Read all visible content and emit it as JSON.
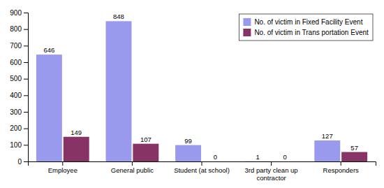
{
  "chart_data": {
    "type": "bar",
    "categories": [
      "Employee",
      "General public",
      "Student (at school)",
      "3rd party clean up\ncontractor",
      "Responders"
    ],
    "series": [
      {
        "name": "No. of victim in Fixed Facility Event",
        "color": "#9999ee",
        "values": [
          646,
          848,
          99,
          1,
          127
        ]
      },
      {
        "name": "No. of victim in Trans portation Event",
        "color": "#883366",
        "values": [
          149,
          107,
          0,
          0,
          57
        ]
      }
    ],
    "ylim": [
      0,
      900
    ],
    "yticks": [
      0,
      100,
      200,
      300,
      400,
      500,
      600,
      700,
      800,
      900
    ],
    "data_labels": true,
    "legend": "upper right",
    "grid": false
  }
}
